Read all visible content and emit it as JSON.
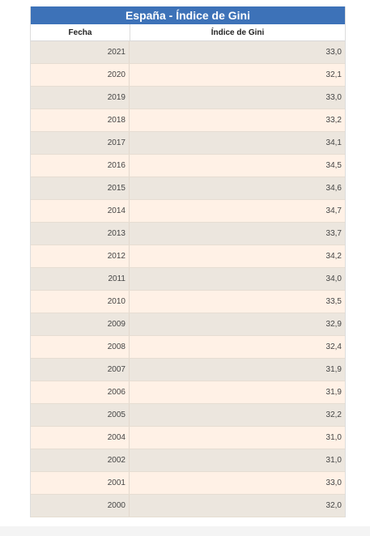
{
  "table": {
    "title": "España - Índice de Gini",
    "headers": {
      "date": "Fecha",
      "value": "Índice de Gini"
    },
    "rows": [
      {
        "date": "2021",
        "value": "33,0"
      },
      {
        "date": "2020",
        "value": "32,1"
      },
      {
        "date": "2019",
        "value": "33,0"
      },
      {
        "date": "2018",
        "value": "33,2"
      },
      {
        "date": "2017",
        "value": "34,1"
      },
      {
        "date": "2016",
        "value": "34,5"
      },
      {
        "date": "2015",
        "value": "34,6"
      },
      {
        "date": "2014",
        "value": "34,7"
      },
      {
        "date": "2013",
        "value": "33,7"
      },
      {
        "date": "2012",
        "value": "34,2"
      },
      {
        "date": "2011",
        "value": "34,0"
      },
      {
        "date": "2010",
        "value": "33,5"
      },
      {
        "date": "2009",
        "value": "32,9"
      },
      {
        "date": "2008",
        "value": "32,4"
      },
      {
        "date": "2007",
        "value": "31,9"
      },
      {
        "date": "2006",
        "value": "31,9"
      },
      {
        "date": "2005",
        "value": "32,2"
      },
      {
        "date": "2004",
        "value": "31,0"
      },
      {
        "date": "2002",
        "value": "31,0"
      },
      {
        "date": "2001",
        "value": "33,0"
      },
      {
        "date": "2000",
        "value": "32,0"
      }
    ]
  },
  "colors": {
    "title_bg": "#3d72b8",
    "row_dark": "#ece6de",
    "row_light": "#fff1e6"
  }
}
